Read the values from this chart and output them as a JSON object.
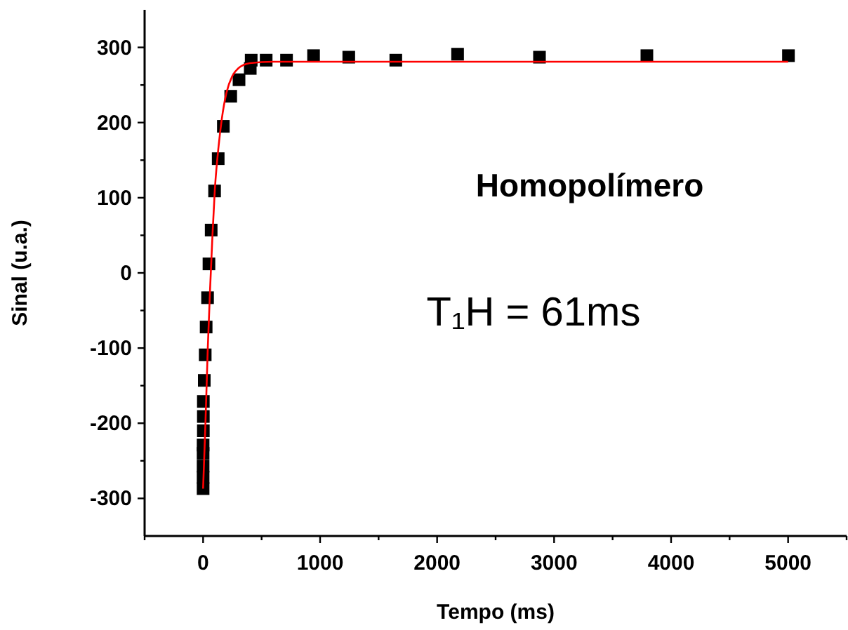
{
  "chart_data": {
    "type": "scatter",
    "xlabel": "Tempo (ms)",
    "ylabel": "Sinal (u.a.)",
    "xlim": [
      -500,
      5500
    ],
    "ylim": [
      -350,
      350
    ],
    "xticks": [
      {
        "value": -500,
        "label": null
      },
      0,
      {
        "value": 500,
        "label": null
      },
      1000,
      {
        "value": 1500,
        "label": null
      },
      2000,
      {
        "value": 2500,
        "label": null
      },
      3000,
      {
        "value": 3500,
        "label": null
      },
      4000,
      {
        "value": 4500,
        "label": null
      },
      5000,
      {
        "value": 5500,
        "label": null
      }
    ],
    "yticks": [
      -300,
      {
        "value": -250,
        "label": null
      },
      -200,
      {
        "value": -150,
        "label": null
      },
      -100,
      {
        "value": -50,
        "label": null
      },
      0,
      {
        "value": 50,
        "label": null
      },
      100,
      {
        "value": 150,
        "label": null
      },
      200,
      {
        "value": 250,
        "label": null
      },
      300
    ],
    "grid": false,
    "annotations": [
      "Homopolímero",
      "T₁H = 61ms"
    ],
    "series": [
      {
        "marker": "square",
        "color": "#000000",
        "x": [
          0,
          0,
          0,
          0,
          0,
          2,
          2,
          2,
          10,
          18,
          26,
          38,
          50,
          69,
          98,
          129,
          173,
          236,
          307,
          403,
          411,
          539,
          713,
          944,
          1245,
          1647,
          2175,
          2875,
          3793,
          5003
        ],
        "values": [
          -287,
          -272,
          -257,
          -240,
          -229,
          -210,
          -191,
          -171,
          -143,
          -109,
          -72,
          -33,
          12,
          57,
          109,
          152,
          195,
          235,
          257,
          272,
          283,
          283,
          283,
          289,
          287,
          283,
          291,
          287,
          289,
          289
        ]
      },
      {
        "type": "line",
        "line_style": "solid",
        "color": "#ff0000",
        "x": [
          0,
          20,
          40,
          60,
          80,
          100,
          130,
          160,
          200,
          250,
          300,
          400,
          600,
          5000
        ],
        "values": [
          -287,
          -200,
          -100,
          -20,
          50,
          110,
          165,
          205,
          240,
          262,
          272,
          279,
          281,
          281
        ]
      }
    ]
  }
}
